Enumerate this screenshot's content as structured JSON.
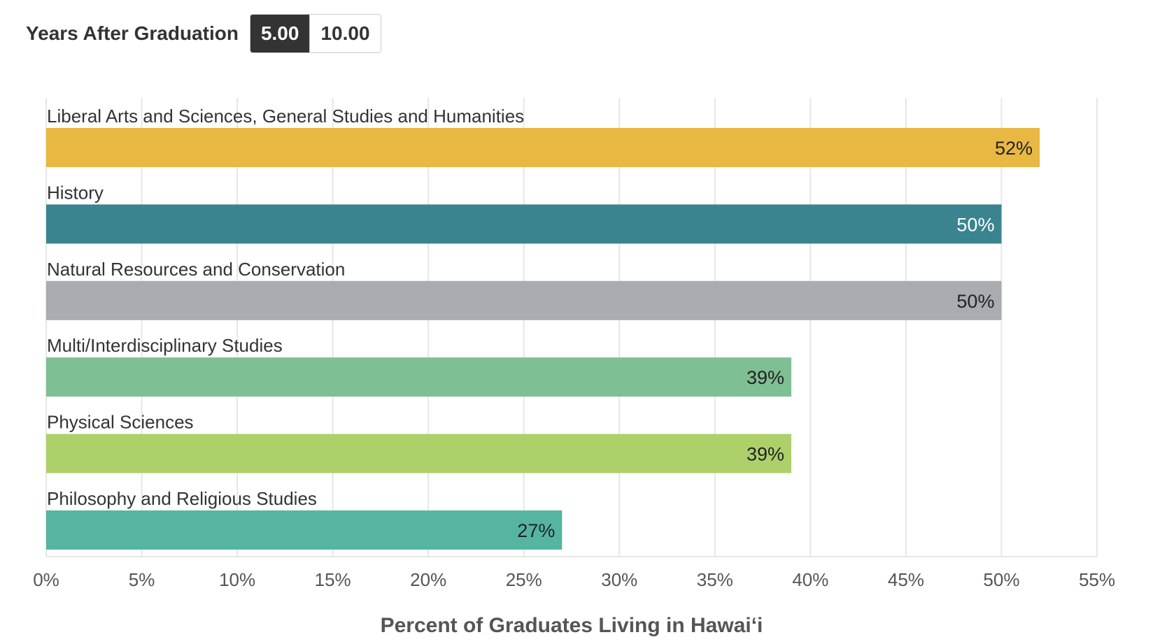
{
  "controls": {
    "label": "Years After Graduation",
    "options": [
      "5.00",
      "10.00"
    ],
    "selected": "5.00"
  },
  "chart_data": {
    "type": "bar",
    "orientation": "horizontal",
    "categories": [
      "Liberal Arts and Sciences, General Studies and Humanities",
      "History",
      "Natural Resources and Conservation",
      "Multi/Interdisciplinary Studies",
      "Physical Sciences",
      "Philosophy and Religious Studies"
    ],
    "values": [
      52,
      50,
      50,
      39,
      39,
      27
    ],
    "value_labels": [
      "52%",
      "50%",
      "50%",
      "39%",
      "39%",
      "27%"
    ],
    "colors": [
      "#E8B842",
      "#3A8490",
      "#A9ACB0",
      "#7FBF94",
      "#AED06A",
      "#55B5A0"
    ],
    "label_colors": [
      "#222222",
      "#ffffff",
      "#222222",
      "#222222",
      "#222222",
      "#222222"
    ],
    "xlabel": "Percent of Graduates Living in Hawaiʻi",
    "ylabel": "",
    "xlim": [
      0,
      55
    ],
    "ticks": [
      0,
      5,
      10,
      15,
      20,
      25,
      30,
      35,
      40,
      45,
      50,
      55
    ],
    "tick_labels": [
      "0%",
      "5%",
      "10%",
      "15%",
      "20%",
      "25%",
      "30%",
      "35%",
      "40%",
      "45%",
      "50%",
      "55%"
    ],
    "grid": true,
    "legend": "none"
  }
}
